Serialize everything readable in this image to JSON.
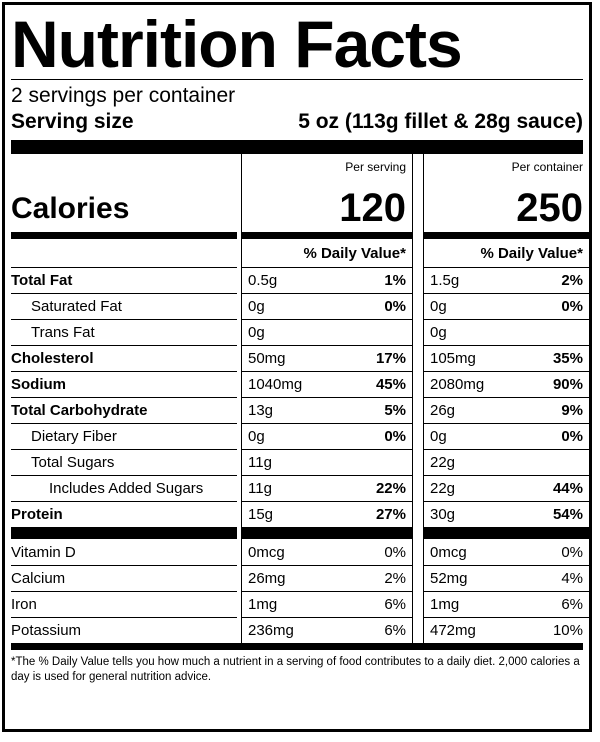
{
  "title": "Nutrition Facts",
  "servings_per_container": "2 servings per container",
  "serving_size_label": "Serving size",
  "serving_size_value": "5 oz (113g fillet & 28g sauce)",
  "calories_label": "Calories",
  "per_serving_label": "Per serving",
  "per_container_label": "Per container",
  "calories_per_serving": "120",
  "calories_per_container": "250",
  "dv_header": "% Daily Value*",
  "nutrients": [
    {
      "name": "Total Fat",
      "bold": true,
      "indent": 0,
      "serving_amount": "0.5g",
      "serving_dv": "1%",
      "container_amount": "1.5g",
      "container_dv": "2%"
    },
    {
      "name": "Saturated Fat",
      "bold": false,
      "indent": 1,
      "serving_amount": "0g",
      "serving_dv": "0%",
      "container_amount": "0g",
      "container_dv": "0%"
    },
    {
      "name": "Trans Fat",
      "bold": false,
      "indent": 1,
      "serving_amount": "0g",
      "serving_dv": "",
      "container_amount": "0g",
      "container_dv": ""
    },
    {
      "name": "Cholesterol",
      "bold": true,
      "indent": 0,
      "serving_amount": "50mg",
      "serving_dv": "17%",
      "container_amount": "105mg",
      "container_dv": "35%"
    },
    {
      "name": "Sodium",
      "bold": true,
      "indent": 0,
      "serving_amount": "1040mg",
      "serving_dv": "45%",
      "container_amount": "2080mg",
      "container_dv": "90%"
    },
    {
      "name": "Total Carbohydrate",
      "bold": true,
      "indent": 0,
      "serving_amount": "13g",
      "serving_dv": "5%",
      "container_amount": "26g",
      "container_dv": "9%"
    },
    {
      "name": "Dietary Fiber",
      "bold": false,
      "indent": 1,
      "serving_amount": "0g",
      "serving_dv": "0%",
      "container_amount": "0g",
      "container_dv": "0%"
    },
    {
      "name": "Total Sugars",
      "bold": false,
      "indent": 1,
      "serving_amount": "11g",
      "serving_dv": "",
      "container_amount": "22g",
      "container_dv": ""
    },
    {
      "name": "Includes Added Sugars",
      "bold": false,
      "indent": 2,
      "serving_amount": "11g",
      "serving_dv": "22%",
      "container_amount": "22g",
      "container_dv": "44%"
    },
    {
      "name": "Protein",
      "bold": true,
      "indent": 0,
      "serving_amount": "15g",
      "serving_dv": "27%",
      "container_amount": "30g",
      "container_dv": "54%"
    }
  ],
  "vitamins": [
    {
      "name": "Vitamin D",
      "serving_amount": "0mcg",
      "serving_dv": "0%",
      "container_amount": "0mcg",
      "container_dv": "0%"
    },
    {
      "name": "Calcium",
      "serving_amount": "26mg",
      "serving_dv": "2%",
      "container_amount": "52mg",
      "container_dv": "4%"
    },
    {
      "name": "Iron",
      "serving_amount": "1mg",
      "serving_dv": "6%",
      "container_amount": "1mg",
      "container_dv": "6%"
    },
    {
      "name": "Potassium",
      "serving_amount": "236mg",
      "serving_dv": "6%",
      "container_amount": "472mg",
      "container_dv": "10%"
    }
  ],
  "footnote": "*The % Daily Value tells you how much a nutrient in a serving of food contributes to a daily diet. 2,000 calories a day is used for general nutrition advice."
}
